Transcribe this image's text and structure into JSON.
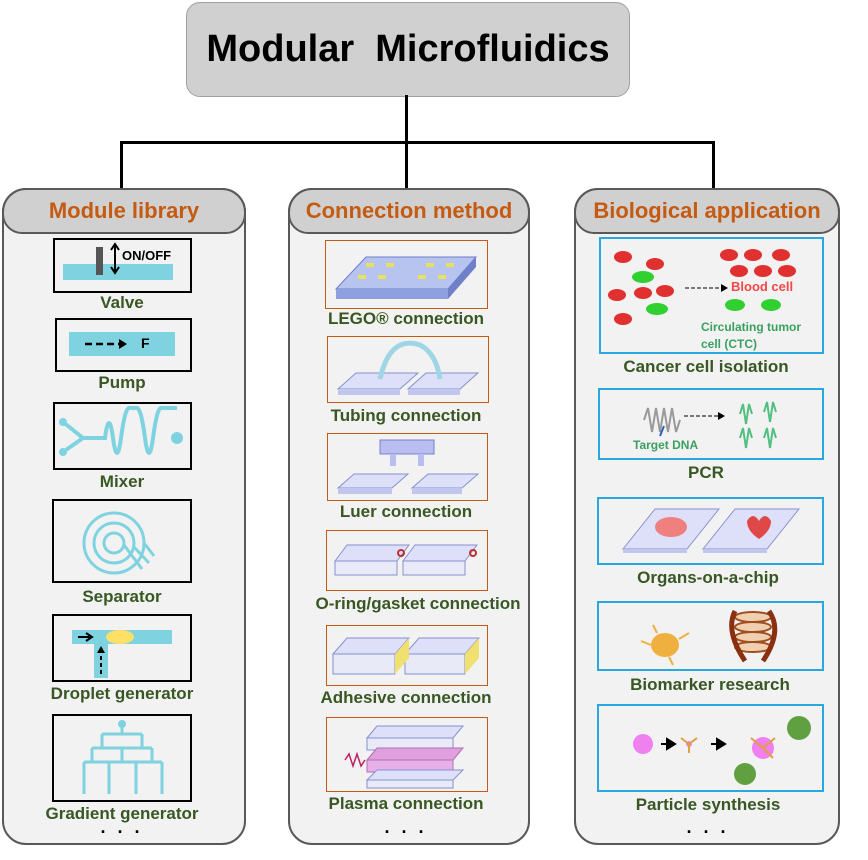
{
  "title": "Modular  Microfluidics",
  "columns": [
    {
      "header": "Module library",
      "items": [
        "Valve",
        "Pump",
        "Mixer",
        "Separator",
        "Droplet generator",
        "Gradient generator"
      ],
      "more": "· · ·"
    },
    {
      "header": "Connection method",
      "items": [
        "LEGO® connection",
        "Tubing connection",
        "Luer connection",
        "O-ring/gasket connection",
        "Adhesive connection",
        "Plasma connection"
      ],
      "more": "· · ·"
    },
    {
      "header": "Biological application",
      "items": [
        "Cancer cell isolation",
        "PCR",
        "Organs-on-a-chip",
        "Biomarker research",
        "Particle synthesis"
      ],
      "more": "· · ·"
    }
  ],
  "annotations": {
    "valve": "ON/OFF",
    "pump": "F",
    "blood_cell": "Blood cell",
    "ctc": "Circulating tumor cell (CTC)",
    "target_dna": "Target DNA"
  },
  "colors": {
    "header_text": "#c55a11",
    "label_text": "#385723",
    "channel": "#7fd3e0",
    "app_border": "#29a8e0",
    "connection_border": "#c55a11"
  }
}
